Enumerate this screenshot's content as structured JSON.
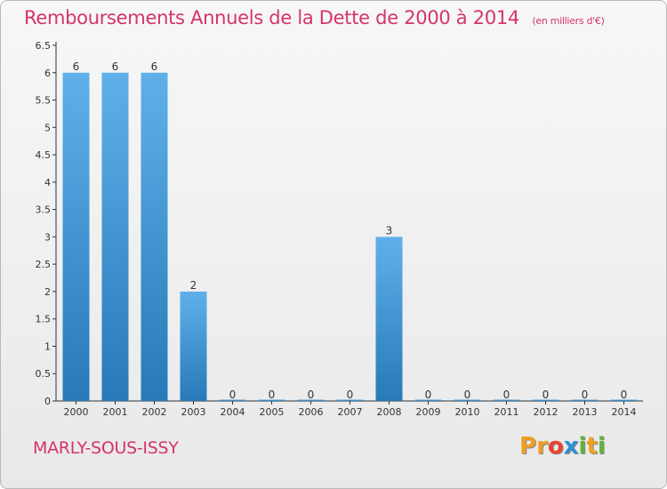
{
  "header": {
    "title": "Remboursements Annuels de la Dette de 2000 à 2014",
    "unit": "(en milliers d'€)"
  },
  "footer": {
    "town": "MARLY-SOUS-ISSY",
    "logo_letters": [
      "P",
      "r",
      "o",
      "x",
      "i",
      "t",
      "i"
    ],
    "logo_colors": [
      "#f0a020",
      "#f0a020",
      "#e8432e",
      "#2e8fd0",
      "#5cb53c",
      "#f0a020",
      "#5cb53c"
    ]
  },
  "colors": {
    "bar_top": "#5fb0ea",
    "bar_bottom": "#2779b8",
    "title": "#d6336c",
    "axis": "#333333"
  },
  "chart_data": {
    "type": "bar",
    "categories": [
      "2000",
      "2001",
      "2002",
      "2003",
      "2004",
      "2005",
      "2006",
      "2007",
      "2008",
      "2009",
      "2010",
      "2011",
      "2012",
      "2013",
      "2014"
    ],
    "values": [
      6,
      6,
      6,
      2,
      0,
      0,
      0,
      0,
      3,
      0,
      0,
      0,
      0,
      0,
      0
    ],
    "data_labels": [
      "6",
      "6",
      "6",
      "2",
      "0",
      "0",
      "0",
      "0",
      "3",
      "0",
      "0",
      "0",
      "0",
      "0",
      "0"
    ],
    "title": "Remboursements Annuels de la Dette de 2000 à 2014",
    "xlabel": "",
    "ylabel": "",
    "ylim": [
      0,
      6.5
    ],
    "yticks": [
      "0",
      "0.5",
      "1",
      "1.5",
      "2",
      "2.5",
      "3",
      "3.5",
      "4",
      "4.5",
      "5",
      "5.5",
      "6",
      "6.5"
    ],
    "grid": false,
    "legend": "none"
  }
}
